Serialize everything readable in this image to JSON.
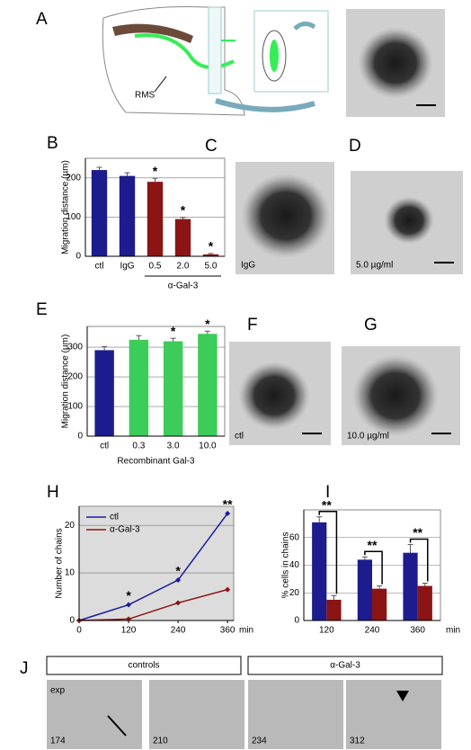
{
  "panel_letters": [
    "A",
    "B",
    "C",
    "D",
    "E",
    "F",
    "G",
    "H",
    "I",
    "J"
  ],
  "panel_a": {
    "label": "RMS"
  },
  "micrographs": {
    "c": "IgG",
    "d": "5.0 µg/ml",
    "f": "ctl",
    "g": "10.0 µg/ml"
  },
  "panel_j": {
    "groups": [
      "controls",
      "α-Gal-3"
    ],
    "note": "exp",
    "frames": [
      "174",
      "210",
      "234",
      "312"
    ]
  },
  "chart_data": [
    {
      "type": "bar",
      "ylabel": "Migration distance (µm)",
      "categories": [
        "ctl",
        "IgG",
        "0.5",
        "2.0",
        "5.0"
      ],
      "values": [
        220,
        205,
        190,
        95,
        5
      ],
      "errors": [
        7,
        8,
        9,
        4,
        2
      ],
      "colors": [
        "#1c1c8e",
        "#1c1c8e",
        "#8b1414",
        "#8b1414",
        "#8b1414"
      ],
      "annotations": [
        null,
        null,
        "*",
        "*",
        "*"
      ],
      "group_label": "α-Gal-3",
      "ylim": [
        0,
        250
      ],
      "yticks": [
        0,
        100,
        200
      ],
      "grid": true
    },
    {
      "type": "bar",
      "ylabel": "Migration distance (µm)",
      "xlabel": "Recombinant Gal-3",
      "categories": [
        "ctl",
        "0.3",
        "3.0",
        "10.0"
      ],
      "values": [
        290,
        325,
        320,
        345
      ],
      "errors": [
        12,
        14,
        10,
        9
      ],
      "colors": [
        "#1c1c8e",
        "#3ccc5a",
        "#3ccc5a",
        "#3ccc5a"
      ],
      "annotations": [
        null,
        null,
        "*",
        "*"
      ],
      "ylim": [
        0,
        370
      ],
      "yticks": [
        0,
        100,
        200,
        300
      ],
      "grid": true
    },
    {
      "type": "line",
      "ylabel": "Number of chains",
      "xunit": "min",
      "x": [
        0,
        120,
        240,
        360
      ],
      "xlim": [
        0,
        375
      ],
      "xticks": [
        0,
        120,
        240,
        360
      ],
      "series": [
        {
          "name": "ctl",
          "color": "#1c1c9e",
          "values": [
            0,
            3.3,
            8.5,
            22.5
          ]
        },
        {
          "name": "α-Gal-3",
          "color": "#8b1414",
          "values": [
            0,
            0.3,
            3.7,
            6.5
          ]
        }
      ],
      "annotations": [
        null,
        "*",
        "*",
        "**"
      ],
      "ylim": [
        0,
        24
      ],
      "yticks": [
        0,
        10,
        20
      ],
      "grid": true,
      "legend": "upper-left"
    },
    {
      "type": "grouped_bar",
      "ylabel": "% cells in chains",
      "xunit": "min",
      "categories": [
        "120",
        "240",
        "360"
      ],
      "series": [
        {
          "color": "#1c1c8e",
          "values": [
            71,
            44,
            49
          ],
          "errors": [
            4,
            2,
            6
          ]
        },
        {
          "color": "#8b1414",
          "values": [
            15,
            23,
            25
          ],
          "errors": [
            3,
            2,
            2
          ]
        }
      ],
      "annotations": [
        "**",
        "**",
        "**"
      ],
      "ylim": [
        0,
        80
      ],
      "yticks": [
        0,
        20,
        40,
        60
      ],
      "grid": true
    }
  ]
}
